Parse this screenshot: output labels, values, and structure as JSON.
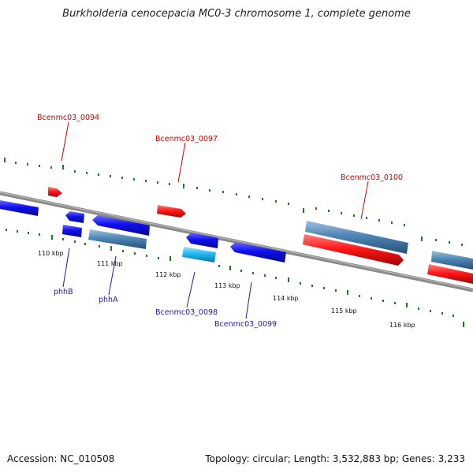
{
  "title": "Burkholderia cenocepacia MC0-3 chromosome 1, complete genome",
  "footer": {
    "accession": "Accession: NC_010508",
    "stats": "Topology: circular; Length: 3,532,883 bp; Genes: 3,233"
  },
  "colors": {
    "backbone": "#7a7a7a",
    "tick": "#1e7a1e",
    "label_red": "#cc0000",
    "label_blue": "#1a1ab0",
    "gene_red": "#ff1a1a",
    "gene_blue": "#1010ee",
    "gene_steel": "#4f86b5",
    "gene_cyan": "#22b8f0"
  },
  "scale_labels": [
    "110 kbp",
    "111 kbp",
    "112 kbp",
    "113 kbp",
    "114 kbp",
    "115 kbp",
    "116 kbp"
  ],
  "gene_labels": {
    "bcenmc03_0094": "Bcenmc03_0094",
    "bcenmc03_0097": "Bcenmc03_0097",
    "bcenmc03_0100": "Bcenmc03_0100",
    "phhB": "phhB",
    "phhA": "phhA",
    "bcenmc03_0098": "Bcenmc03_0098",
    "bcenmc03_0099": "Bcenmc03_0099"
  }
}
